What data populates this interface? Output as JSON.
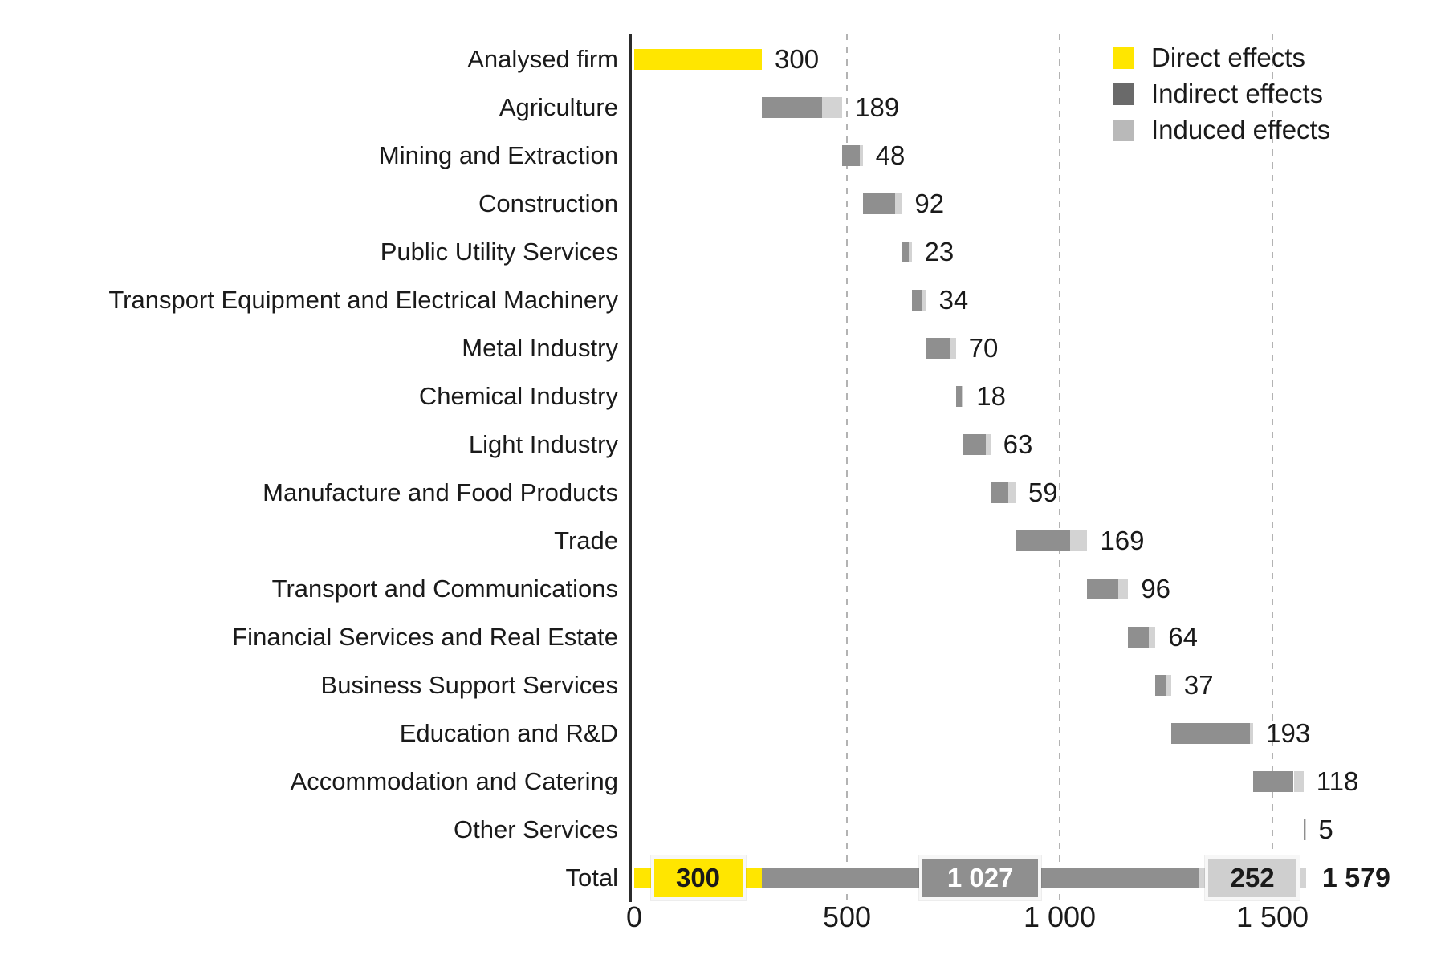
{
  "chart_data": {
    "type": "bar",
    "variant": "horizontal-stacked-waterfall",
    "title": "",
    "xlabel": "",
    "ylabel": "",
    "x_axis": {
      "min": 0,
      "max": 1700,
      "gridlines": [
        500,
        1000,
        1500
      ],
      "ticks": [
        {
          "value": 0,
          "label": "0"
        },
        {
          "value": 500,
          "label": "500"
        },
        {
          "value": 1000,
          "label": "1 000"
        },
        {
          "value": 1500,
          "label": "1 500"
        }
      ]
    },
    "legend": {
      "position": "top-right",
      "items": [
        {
          "key": "direct",
          "label": "Direct effects",
          "color": "#FFE600"
        },
        {
          "key": "indirect",
          "label": "Indirect effects",
          "color": "#6A6A6A"
        },
        {
          "key": "induced",
          "label": "Induced effects",
          "color": "#B9B9B9"
        }
      ]
    },
    "bar_colors": {
      "direct": "#FFE600",
      "indirect": "#8F8F8F",
      "induced": "#D3D3D3"
    },
    "rows": [
      {
        "label": "Analysed firm",
        "value": 300,
        "value_label": "300",
        "segments": [
          {
            "type": "direct",
            "value": 300
          }
        ]
      },
      {
        "label": "Agriculture",
        "value": 189,
        "value_label": "189",
        "segments": [
          {
            "type": "indirect",
            "value": 141
          },
          {
            "type": "induced",
            "value": 48
          }
        ]
      },
      {
        "label": "Mining and Extraction",
        "value": 48,
        "value_label": "48",
        "segments": [
          {
            "type": "indirect",
            "value": 41
          },
          {
            "type": "induced",
            "value": 7
          }
        ]
      },
      {
        "label": "Construction",
        "value": 92,
        "value_label": "92",
        "segments": [
          {
            "type": "indirect",
            "value": 76
          },
          {
            "type": "induced",
            "value": 16
          }
        ]
      },
      {
        "label": "Public Utility Services",
        "value": 23,
        "value_label": "23",
        "segments": [
          {
            "type": "indirect",
            "value": 16
          },
          {
            "type": "induced",
            "value": 7
          }
        ]
      },
      {
        "label": "Transport Equipment and Electrical Machinery",
        "value": 34,
        "value_label": "34",
        "segments": [
          {
            "type": "indirect",
            "value": 25
          },
          {
            "type": "induced",
            "value": 9
          }
        ]
      },
      {
        "label": "Metal Industry",
        "value": 70,
        "value_label": "70",
        "segments": [
          {
            "type": "indirect",
            "value": 58
          },
          {
            "type": "induced",
            "value": 12
          }
        ]
      },
      {
        "label": "Chemical Industry",
        "value": 18,
        "value_label": "18",
        "segments": [
          {
            "type": "indirect",
            "value": 13
          },
          {
            "type": "induced",
            "value": 5
          }
        ]
      },
      {
        "label": "Light Industry",
        "value": 63,
        "value_label": "63",
        "segments": [
          {
            "type": "indirect",
            "value": 52
          },
          {
            "type": "induced",
            "value": 11
          }
        ]
      },
      {
        "label": "Manufacture and Food Products",
        "value": 59,
        "value_label": "59",
        "segments": [
          {
            "type": "indirect",
            "value": 42
          },
          {
            "type": "induced",
            "value": 17
          }
        ]
      },
      {
        "label": "Trade",
        "value": 169,
        "value_label": "169",
        "segments": [
          {
            "type": "indirect",
            "value": 128
          },
          {
            "type": "induced",
            "value": 41
          }
        ]
      },
      {
        "label": "Transport and Communications",
        "value": 96,
        "value_label": "96",
        "segments": [
          {
            "type": "indirect",
            "value": 73
          },
          {
            "type": "induced",
            "value": 23
          }
        ]
      },
      {
        "label": "Financial Services and Real Estate",
        "value": 64,
        "value_label": "64",
        "segments": [
          {
            "type": "indirect",
            "value": 49
          },
          {
            "type": "induced",
            "value": 15
          }
        ]
      },
      {
        "label": "Business Support Services",
        "value": 37,
        "value_label": "37",
        "segments": [
          {
            "type": "indirect",
            "value": 26
          },
          {
            "type": "induced",
            "value": 11
          }
        ]
      },
      {
        "label": "Education and R&D",
        "value": 193,
        "value_label": "193",
        "segments": [
          {
            "type": "indirect",
            "value": 186
          },
          {
            "type": "induced",
            "value": 7
          }
        ]
      },
      {
        "label": "Accommodation and Catering",
        "value": 118,
        "value_label": "118",
        "segments": [
          {
            "type": "indirect",
            "value": 95
          },
          {
            "type": "induced",
            "value": 23
          }
        ]
      },
      {
        "label": "Other Services",
        "value": 5,
        "value_label": "5",
        "segments": [
          {
            "type": "indirect",
            "value": 4
          },
          {
            "type": "induced",
            "value": 1
          }
        ]
      },
      {
        "label": "Total",
        "is_total": true,
        "value": 1579,
        "value_label": "1 579",
        "segments": [
          {
            "type": "direct",
            "value": 300,
            "label": "300"
          },
          {
            "type": "indirect",
            "value": 1027,
            "label": "1 027"
          },
          {
            "type": "induced",
            "value": 252,
            "label": "252"
          }
        ]
      }
    ]
  },
  "colors": {
    "text": "#1a1a1a",
    "axis": "#2b2b2b",
    "gridline": "#b3b3b3",
    "total_box_border": "#f7f7f7",
    "total_box_induced_fill": "#CFCFCF",
    "total_box_text_on_dark": "#ffffff"
  }
}
